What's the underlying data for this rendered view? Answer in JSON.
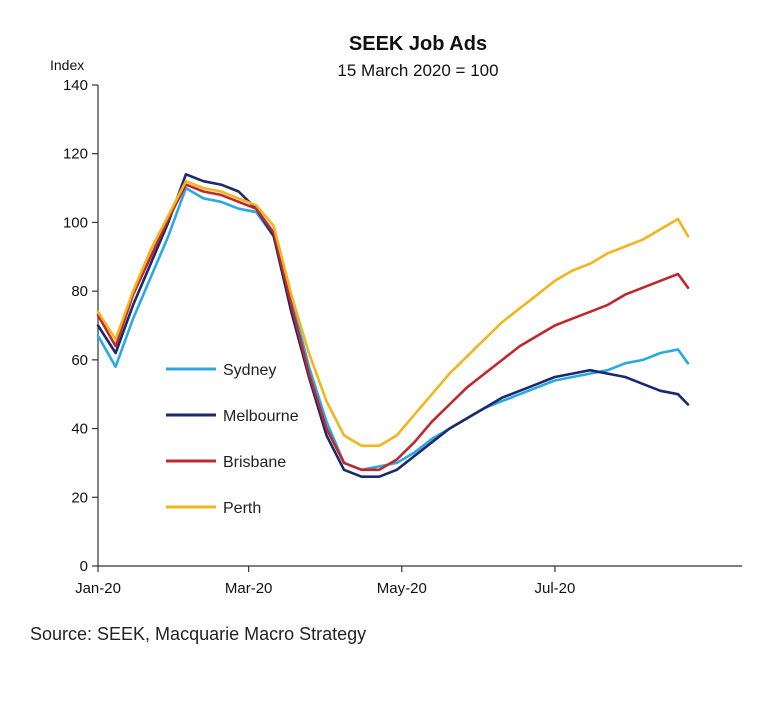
{
  "source": "Source: SEEK, Macquarie Macro Strategy",
  "chart_data": {
    "type": "line",
    "title": "SEEK Job Ads",
    "subtitle": "15 March 2020 = 100",
    "ylabel": "Index",
    "xlabel": "",
    "ylim": [
      0,
      140
    ],
    "yticks": [
      0,
      20,
      40,
      60,
      80,
      100,
      120,
      140
    ],
    "x_start": "2020-01-01",
    "x_end": "2020-08-23",
    "xticks": [
      {
        "date": "2020-01-01",
        "label": "Jan-20"
      },
      {
        "date": "2020-03-01",
        "label": "Mar-20"
      },
      {
        "date": "2020-05-01",
        "label": "May-20"
      },
      {
        "date": "2020-07-01",
        "label": "Jul-20"
      }
    ],
    "grid": false,
    "legend_position": "left-middle",
    "dates": [
      "2020-01-01",
      "2020-01-08",
      "2020-01-15",
      "2020-01-22",
      "2020-01-29",
      "2020-02-05",
      "2020-02-12",
      "2020-02-19",
      "2020-02-26",
      "2020-03-04",
      "2020-03-11",
      "2020-03-18",
      "2020-03-25",
      "2020-04-01",
      "2020-04-08",
      "2020-04-15",
      "2020-04-22",
      "2020-04-29",
      "2020-05-06",
      "2020-05-13",
      "2020-05-20",
      "2020-05-27",
      "2020-06-03",
      "2020-06-10",
      "2020-06-17",
      "2020-06-24",
      "2020-07-01",
      "2020-07-08",
      "2020-07-15",
      "2020-07-22",
      "2020-07-29",
      "2020-08-05",
      "2020-08-12",
      "2020-08-19",
      "2020-08-23"
    ],
    "series": [
      {
        "name": "Sydney",
        "color": "#29A9E1",
        "values": [
          67,
          58,
          72,
          84,
          96,
          110,
          107,
          106,
          104,
          103,
          96,
          78,
          58,
          42,
          30,
          28,
          29,
          30,
          33,
          37,
          40,
          43,
          46,
          48,
          50,
          52,
          54,
          55,
          56,
          57,
          59,
          60,
          62,
          63,
          59
        ]
      },
      {
        "name": "Melbourne",
        "color": "#1A2A6C",
        "values": [
          70,
          62,
          76,
          88,
          100,
          114,
          112,
          111,
          109,
          104,
          96,
          74,
          55,
          38,
          28,
          26,
          26,
          28,
          32,
          36,
          40,
          43,
          46,
          49,
          51,
          53,
          55,
          56,
          57,
          56,
          55,
          53,
          51,
          50,
          47
        ]
      },
      {
        "name": "Brisbane",
        "color": "#C0282D",
        "values": [
          73,
          64,
          79,
          90,
          101,
          111,
          109,
          108,
          106,
          104,
          97,
          76,
          56,
          40,
          30,
          28,
          28,
          31,
          36,
          42,
          47,
          52,
          56,
          60,
          64,
          67,
          70,
          72,
          74,
          76,
          79,
          81,
          83,
          85,
          81
        ]
      },
      {
        "name": "Perth",
        "color": "#F2B51B",
        "values": [
          74,
          66,
          80,
          92,
          102,
          112,
          110,
          109,
          107,
          105,
          99,
          79,
          62,
          48,
          38,
          35,
          35,
          38,
          44,
          50,
          56,
          61,
          66,
          71,
          75,
          79,
          83,
          86,
          88,
          91,
          93,
          95,
          98,
          101,
          96
        ]
      }
    ]
  }
}
